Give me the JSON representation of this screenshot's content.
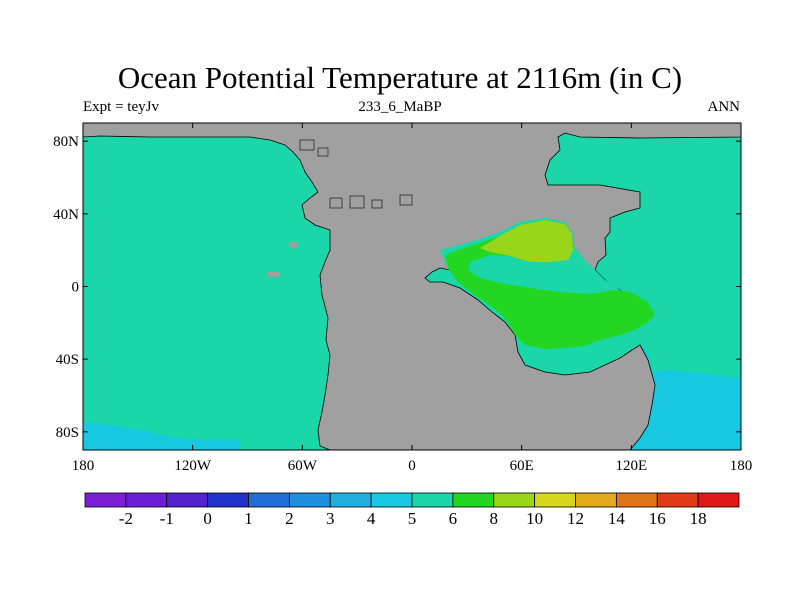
{
  "title": "Ocean Potential Temperature at 2116m (in C)",
  "subtitle_left": "Expt = teyJv",
  "subtitle_center": "233_6_MaBP",
  "subtitle_right": "ANN",
  "x_axis_labels": [
    "180",
    "120W",
    "60W",
    "0",
    "60E",
    "120E",
    "180"
  ],
  "y_axis_labels": [
    "80N",
    "40N",
    "0",
    "40S",
    "80S"
  ],
  "colorbar": {
    "labels": [
      "-2",
      "-1",
      "0",
      "1",
      "2",
      "3",
      "4",
      "5",
      "6",
      "8",
      "10",
      "12",
      "14",
      "16",
      "18"
    ],
    "colors": [
      "#7a1fd6",
      "#6a1fd6",
      "#5222cc",
      "#2233cc",
      "#1f6fd6",
      "#1f8fe0",
      "#1fb0e0",
      "#18c8e0",
      "#1ad6a8",
      "#22d622",
      "#99d61a",
      "#d6d61a",
      "#e0aa1a",
      "#e07518",
      "#e03a18",
      "#e01818"
    ]
  },
  "colors": {
    "land": "#a0a0a0",
    "ocean_main": "#1ad6a8",
    "ocean_cold": "#18c8e0",
    "ocean_warm": "#22d622",
    "ocean_warmest": "#99d61a"
  }
}
